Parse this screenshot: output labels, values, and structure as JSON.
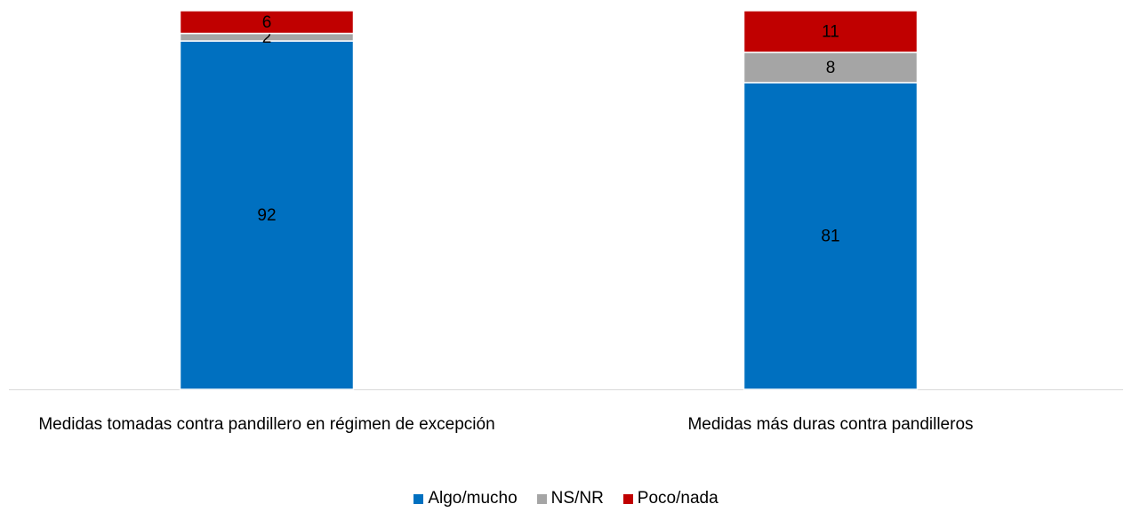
{
  "chart_data": {
    "type": "stacked_bar",
    "categories": [
      "Medidas tomadas contra pandillero en régimen de excepción",
      "Medidas más duras contra pandilleros"
    ],
    "series": [
      {
        "name": "Algo/mucho",
        "color": "#0070c0",
        "values": [
          92,
          81
        ]
      },
      {
        "name": "NS/NR",
        "color": "#a5a5a5",
        "values": [
          2,
          8
        ]
      },
      {
        "name": "Poco/nada",
        "color": "#c00000",
        "values": [
          6,
          11
        ]
      }
    ]
  }
}
